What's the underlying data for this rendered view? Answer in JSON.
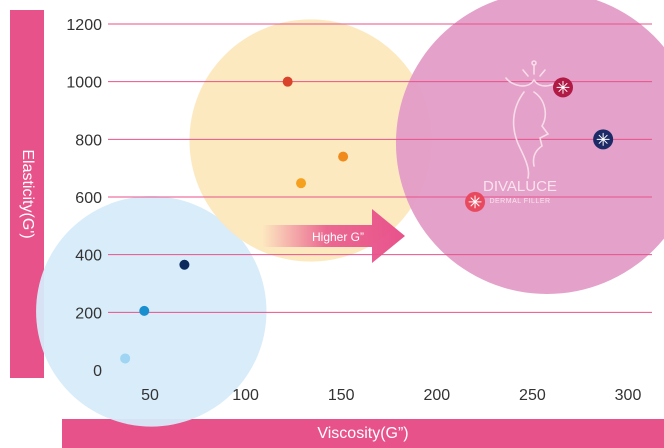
{
  "chart_data": {
    "type": "scatter",
    "xlabel": "Viscosity(G”)",
    "ylabel": "Elasticity(G')",
    "xlim": [
      25,
      315
    ],
    "ylim": [
      0,
      1200
    ],
    "xticks": [
      "50",
      "100",
      "150",
      "200",
      "250",
      "300"
    ],
    "yticks": [
      "0",
      "200",
      "400",
      "600",
      "800",
      "1000",
      "1200"
    ],
    "grid": "horizontal",
    "groups": [
      {
        "color": "#d6ebfa",
        "points": [
          {
            "x": 37,
            "y": 40,
            "color": "#9fd4f3"
          },
          {
            "x": 47,
            "y": 205,
            "color": "#1a8fcf"
          },
          {
            "x": 68,
            "y": 365,
            "color": "#0d2a5c"
          }
        ]
      },
      {
        "color": "#fde8bd",
        "points": [
          {
            "x": 122,
            "y": 1000,
            "color": "#d9432b"
          },
          {
            "x": 129,
            "y": 648,
            "color": "#f5a01e"
          },
          {
            "x": 151,
            "y": 740,
            "color": "#f08a1b"
          }
        ]
      },
      {
        "color": "#e39cc7",
        "points": [
          {
            "x": 220,
            "y": 583,
            "color": "#e8495f"
          },
          {
            "x": 266,
            "y": 980,
            "color": "#b01a45"
          },
          {
            "x": 287,
            "y": 800,
            "color": "#1c2b66"
          }
        ]
      }
    ],
    "annotations": {
      "arrow_label": "Higher G”",
      "brand_name": "DIVALUCE",
      "brand_sub": "DERMAL FILLER"
    },
    "colors": {
      "accent": "#e8528a",
      "grid": "#e8528a",
      "tick_text": "#333333"
    }
  }
}
